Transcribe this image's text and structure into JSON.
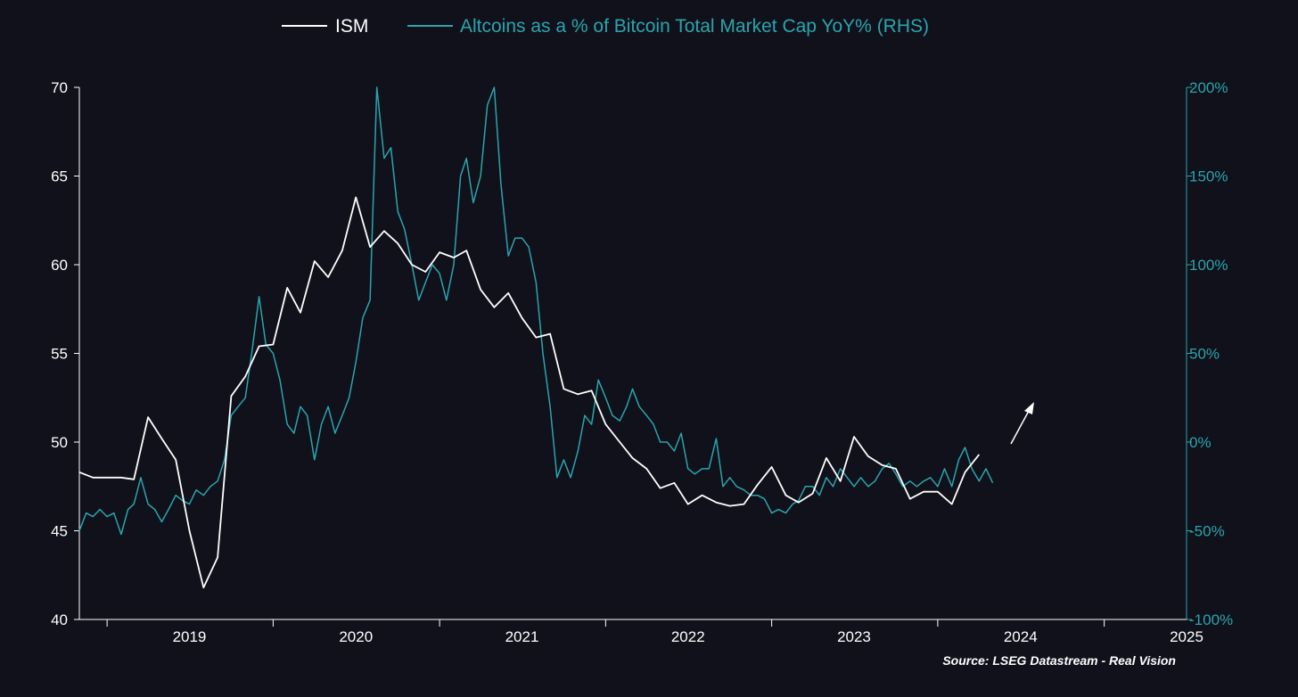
{
  "colors": {
    "background": "#10111b",
    "ism": "#ffffff",
    "altcoins": "#2aa5ad",
    "axis_left": "#ffffff",
    "axis_right": "#2aa5ad"
  },
  "legend": {
    "ism_label": "ISM",
    "alt_label": "Altcoins as a % of Bitcoin Total Market Cap YoY% (RHS)",
    "placement": "top-center"
  },
  "source": "Source: LSEG Datastream - Real Vision",
  "chart_data": {
    "type": "line",
    "title": "",
    "grid": false,
    "x_ticks": [
      "2019",
      "2020",
      "2021",
      "2022",
      "2023",
      "2024",
      "2025"
    ],
    "xlim": [
      "2018-11-01",
      "2025-07-01"
    ],
    "y_left": {
      "ticks": [
        "40",
        "45",
        "50",
        "55",
        "60",
        "65",
        "70"
      ],
      "range": [
        40,
        70
      ]
    },
    "y_right": {
      "ticks": [
        "-100%",
        "-50%",
        "0%",
        "50%",
        "100%",
        "150%",
        "200%"
      ],
      "range": [
        -100,
        200
      ]
    },
    "annotation": "upward arrow",
    "series": [
      {
        "name": "ISM",
        "axis": "left",
        "points": [
          [
            "2018-11-01",
            48.3
          ],
          [
            "2018-12-01",
            48.0
          ],
          [
            "2019-01-01",
            48.0
          ],
          [
            "2019-02-01",
            48.0
          ],
          [
            "2019-03-01",
            47.9
          ],
          [
            "2019-04-01",
            51.4
          ],
          [
            "2019-05-01",
            50.2
          ],
          [
            "2019-06-01",
            49.0
          ],
          [
            "2019-07-01",
            45.0
          ],
          [
            "2019-08-01",
            41.8
          ],
          [
            "2019-09-01",
            43.5
          ],
          [
            "2019-10-01",
            52.6
          ],
          [
            "2019-11-01",
            53.7
          ],
          [
            "2019-12-01",
            55.4
          ],
          [
            "2020-01-01",
            55.5
          ],
          [
            "2020-02-01",
            58.7
          ],
          [
            "2020-03-01",
            57.3
          ],
          [
            "2020-04-01",
            60.2
          ],
          [
            "2020-05-01",
            59.3
          ],
          [
            "2020-06-01",
            60.8
          ],
          [
            "2020-07-01",
            63.8
          ],
          [
            "2020-08-01",
            61.0
          ],
          [
            "2020-09-01",
            61.9
          ],
          [
            "2020-10-01",
            61.2
          ],
          [
            "2020-11-01",
            60.0
          ],
          [
            "2020-12-01",
            59.6
          ],
          [
            "2021-01-01",
            60.7
          ],
          [
            "2021-02-01",
            60.4
          ],
          [
            "2021-03-01",
            60.8
          ],
          [
            "2021-04-01",
            58.6
          ],
          [
            "2021-05-01",
            57.6
          ],
          [
            "2021-06-01",
            58.4
          ],
          [
            "2021-07-01",
            57.0
          ],
          [
            "2021-08-01",
            55.9
          ],
          [
            "2021-09-01",
            56.1
          ],
          [
            "2021-10-01",
            53.0
          ],
          [
            "2021-11-01",
            52.7
          ],
          [
            "2021-12-01",
            52.9
          ],
          [
            "2022-01-01",
            51.0
          ],
          [
            "2022-02-01",
            50.0
          ],
          [
            "2022-03-01",
            49.1
          ],
          [
            "2022-04-01",
            48.5
          ],
          [
            "2022-05-01",
            47.4
          ],
          [
            "2022-06-01",
            47.7
          ],
          [
            "2022-07-01",
            46.5
          ],
          [
            "2022-08-01",
            47.0
          ],
          [
            "2022-09-01",
            46.6
          ],
          [
            "2022-10-01",
            46.4
          ],
          [
            "2022-11-01",
            46.5
          ],
          [
            "2022-12-01",
            47.6
          ],
          [
            "2023-01-01",
            48.6
          ],
          [
            "2023-02-01",
            47.0
          ],
          [
            "2023-03-01",
            46.6
          ],
          [
            "2023-04-01",
            47.1
          ],
          [
            "2023-05-01",
            49.1
          ],
          [
            "2023-06-01",
            47.8
          ],
          [
            "2023-07-01",
            50.3
          ],
          [
            "2023-08-01",
            49.2
          ],
          [
            "2023-09-01",
            48.7
          ],
          [
            "2023-10-01",
            48.5
          ],
          [
            "2023-11-01",
            46.8
          ],
          [
            "2023-12-01",
            47.2
          ],
          [
            "2024-01-01",
            47.2
          ],
          [
            "2024-02-01",
            46.5
          ],
          [
            "2024-03-01",
            48.3
          ],
          [
            "2024-04-01",
            49.3
          ]
        ]
      },
      {
        "name": "Altcoins as a % of Bitcoin Total Market Cap YoY% (RHS)",
        "axis": "right",
        "points": [
          [
            "2018-11-01",
            -50
          ],
          [
            "2018-11-16",
            -40
          ],
          [
            "2018-12-01",
            -42
          ],
          [
            "2018-12-16",
            -38
          ],
          [
            "2019-01-01",
            -42
          ],
          [
            "2019-01-16",
            -40
          ],
          [
            "2019-02-01",
            -52
          ],
          [
            "2019-02-16",
            -38
          ],
          [
            "2019-03-01",
            -35
          ],
          [
            "2019-03-16",
            -20
          ],
          [
            "2019-04-01",
            -35
          ],
          [
            "2019-04-16",
            -38
          ],
          [
            "2019-05-01",
            -45
          ],
          [
            "2019-05-16",
            -38
          ],
          [
            "2019-06-01",
            -30
          ],
          [
            "2019-06-16",
            -33
          ],
          [
            "2019-07-01",
            -35
          ],
          [
            "2019-07-16",
            -27
          ],
          [
            "2019-08-01",
            -30
          ],
          [
            "2019-08-16",
            -25
          ],
          [
            "2019-09-01",
            -22
          ],
          [
            "2019-09-16",
            -10
          ],
          [
            "2019-10-01",
            15
          ],
          [
            "2019-10-16",
            20
          ],
          [
            "2019-11-01",
            25
          ],
          [
            "2019-11-16",
            52
          ],
          [
            "2019-12-01",
            82
          ],
          [
            "2019-12-16",
            55
          ],
          [
            "2020-01-01",
            50
          ],
          [
            "2020-01-16",
            35
          ],
          [
            "2020-02-01",
            10
          ],
          [
            "2020-02-16",
            5
          ],
          [
            "2020-03-01",
            20
          ],
          [
            "2020-03-16",
            15
          ],
          [
            "2020-04-01",
            -10
          ],
          [
            "2020-04-16",
            10
          ],
          [
            "2020-05-01",
            20
          ],
          [
            "2020-05-16",
            5
          ],
          [
            "2020-06-01",
            15
          ],
          [
            "2020-06-16",
            25
          ],
          [
            "2020-07-01",
            45
          ],
          [
            "2020-07-16",
            70
          ],
          [
            "2020-08-01",
            80
          ],
          [
            "2020-08-16",
            200
          ],
          [
            "2020-09-01",
            160
          ],
          [
            "2020-09-16",
            166
          ],
          [
            "2020-10-01",
            130
          ],
          [
            "2020-10-16",
            120
          ],
          [
            "2020-11-01",
            100
          ],
          [
            "2020-11-16",
            80
          ],
          [
            "2020-12-01",
            90
          ],
          [
            "2020-12-16",
            100
          ],
          [
            "2021-01-01",
            95
          ],
          [
            "2021-01-16",
            80
          ],
          [
            "2021-02-01",
            100
          ],
          [
            "2021-02-16",
            150
          ],
          [
            "2021-03-01",
            160
          ],
          [
            "2021-03-16",
            135
          ],
          [
            "2021-04-01",
            150
          ],
          [
            "2021-04-16",
            190
          ],
          [
            "2021-05-01",
            200
          ],
          [
            "2021-05-16",
            145
          ],
          [
            "2021-06-01",
            105
          ],
          [
            "2021-06-16",
            115
          ],
          [
            "2021-07-01",
            115
          ],
          [
            "2021-07-16",
            110
          ],
          [
            "2021-08-01",
            90
          ],
          [
            "2021-08-16",
            50
          ],
          [
            "2021-09-01",
            20
          ],
          [
            "2021-09-16",
            -20
          ],
          [
            "2021-10-01",
            -10
          ],
          [
            "2021-10-16",
            -20
          ],
          [
            "2021-11-01",
            -5
          ],
          [
            "2021-11-16",
            15
          ],
          [
            "2021-12-01",
            10
          ],
          [
            "2021-12-16",
            35
          ],
          [
            "2022-01-01",
            25
          ],
          [
            "2022-01-16",
            15
          ],
          [
            "2022-02-01",
            12
          ],
          [
            "2022-02-16",
            20
          ],
          [
            "2022-03-01",
            30
          ],
          [
            "2022-03-16",
            20
          ],
          [
            "2022-04-01",
            15
          ],
          [
            "2022-04-16",
            10
          ],
          [
            "2022-05-01",
            0
          ],
          [
            "2022-05-16",
            0
          ],
          [
            "2022-06-01",
            -5
          ],
          [
            "2022-06-16",
            5
          ],
          [
            "2022-07-01",
            -15
          ],
          [
            "2022-07-16",
            -18
          ],
          [
            "2022-08-01",
            -15
          ],
          [
            "2022-08-16",
            -15
          ],
          [
            "2022-09-01",
            2
          ],
          [
            "2022-09-16",
            -25
          ],
          [
            "2022-10-01",
            -20
          ],
          [
            "2022-10-16",
            -25
          ],
          [
            "2022-11-01",
            -27
          ],
          [
            "2022-11-16",
            -30
          ],
          [
            "2022-12-01",
            -30
          ],
          [
            "2022-12-16",
            -32
          ],
          [
            "2023-01-01",
            -40
          ],
          [
            "2023-01-16",
            -38
          ],
          [
            "2023-02-01",
            -40
          ],
          [
            "2023-02-16",
            -35
          ],
          [
            "2023-03-01",
            -33
          ],
          [
            "2023-03-16",
            -25
          ],
          [
            "2023-04-01",
            -25
          ],
          [
            "2023-04-16",
            -30
          ],
          [
            "2023-05-01",
            -20
          ],
          [
            "2023-05-16",
            -25
          ],
          [
            "2023-06-01",
            -15
          ],
          [
            "2023-06-16",
            -20
          ],
          [
            "2023-07-01",
            -25
          ],
          [
            "2023-07-16",
            -20
          ],
          [
            "2023-08-01",
            -25
          ],
          [
            "2023-08-16",
            -22
          ],
          [
            "2023-09-01",
            -15
          ],
          [
            "2023-09-16",
            -12
          ],
          [
            "2023-10-01",
            -18
          ],
          [
            "2023-10-16",
            -25
          ],
          [
            "2023-11-01",
            -22
          ],
          [
            "2023-11-16",
            -25
          ],
          [
            "2023-12-01",
            -22
          ],
          [
            "2023-12-16",
            -20
          ],
          [
            "2024-01-01",
            -25
          ],
          [
            "2024-01-16",
            -15
          ],
          [
            "2024-02-01",
            -25
          ],
          [
            "2024-02-16",
            -10
          ],
          [
            "2024-03-01",
            -3
          ],
          [
            "2024-03-16",
            -15
          ],
          [
            "2024-04-01",
            -22
          ],
          [
            "2024-04-16",
            -15
          ],
          [
            "2024-05-01",
            -23
          ]
        ]
      }
    ]
  }
}
